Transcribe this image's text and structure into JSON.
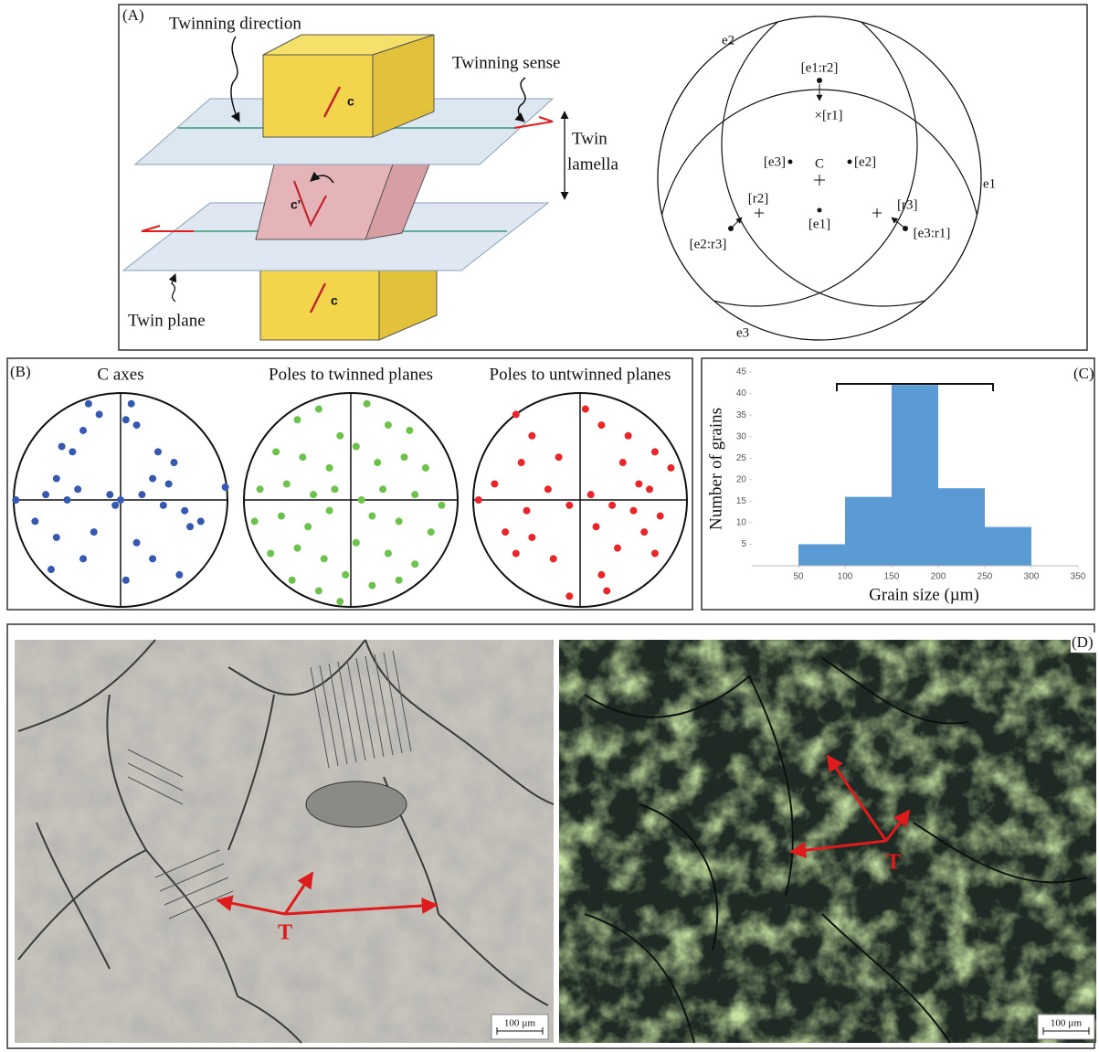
{
  "panels": {
    "a": {
      "label": "(A)",
      "twinning_direction": "Twinning direction",
      "twinning_sense": "Twinning sense",
      "twin_lamella": [
        "Twin",
        "lamella"
      ],
      "twin_plane": "Twin plane",
      "c_upper": "c",
      "c_twin": "c'",
      "c_lower": "c",
      "stereonet": {
        "e2": "e2",
        "e1": "e1",
        "e3": "e3",
        "e1_r2": "[e1:r2]",
        "r1": "×[r1]",
        "e3_pole": "[e3]",
        "c": "C",
        "e2_pole": "[e2]",
        "r2": "[r2]",
        "r3": "[r3]",
        "e2_r3": "[e2:r3]",
        "e1_pole": "[e1]",
        "e3_r1": "[e3:r1]"
      }
    },
    "b": {
      "label": "(B)",
      "nets": [
        {
          "title": "C axes",
          "color": "#3559b0",
          "x": [
            -0.3,
            -0.2,
            0.05,
            0.1,
            0.15,
            -0.55,
            -0.45,
            -0.35,
            -0.6,
            -0.4,
            0.35,
            0.5,
            0.3,
            0.45,
            -0.7,
            -0.5,
            -0.1,
            0.0,
            -0.05,
            0.2,
            0.4,
            0.6,
            0.75,
            0.65,
            -0.8,
            -0.6,
            -0.25,
            0.15,
            0.3,
            -0.65,
            0.05,
            -0.35,
            0.55,
            0.98,
            -0.98
          ],
          "y": [
            0.9,
            0.8,
            0.75,
            0.9,
            0.7,
            0.5,
            0.45,
            0.65,
            0.2,
            0.1,
            0.45,
            0.35,
            0.2,
            0.15,
            0.05,
            0.0,
            0.05,
            0.0,
            -0.05,
            0.05,
            -0.05,
            -0.1,
            -0.2,
            -0.25,
            -0.2,
            -0.35,
            -0.3,
            -0.4,
            -0.55,
            -0.65,
            -0.75,
            -0.55,
            -0.7,
            0.12,
            0.0
          ]
        },
        {
          "title": "Poles to twinned planes",
          "color": "#6cc24a",
          "x": [
            -0.5,
            -0.3,
            -0.1,
            0.15,
            0.35,
            0.55,
            -0.7,
            -0.45,
            -0.2,
            0.05,
            0.25,
            0.5,
            0.7,
            -0.85,
            -0.6,
            -0.35,
            -0.15,
            0.1,
            0.3,
            0.6,
            0.85,
            -0.9,
            -0.65,
            -0.4,
            -0.2,
            0.2,
            0.45,
            0.75,
            -0.75,
            -0.5,
            -0.25,
            0.05,
            0.35,
            0.6,
            -0.55,
            -0.3,
            -0.05,
            0.2,
            0.45,
            -0.1
          ],
          "y": [
            0.75,
            0.85,
            0.6,
            0.9,
            0.7,
            0.65,
            0.45,
            0.4,
            0.3,
            0.5,
            0.35,
            0.4,
            0.3,
            0.1,
            0.15,
            0.05,
            0.1,
            0.0,
            0.1,
            0.05,
            -0.05,
            -0.2,
            -0.15,
            -0.25,
            -0.1,
            -0.15,
            -0.2,
            -0.3,
            -0.5,
            -0.45,
            -0.55,
            -0.4,
            -0.5,
            -0.6,
            -0.75,
            -0.85,
            -0.7,
            -0.8,
            -0.75,
            -0.95
          ]
        },
        {
          "title": "Poles to untwinned planes",
          "color": "#e8262a",
          "x": [
            -0.6,
            -0.45,
            0.05,
            0.2,
            0.45,
            -0.55,
            -0.2,
            0.4,
            0.7,
            0.85,
            -0.8,
            -0.3,
            0.1,
            0.55,
            0.65,
            -0.95,
            -0.5,
            -0.1,
            0.3,
            0.5,
            0.75,
            -0.7,
            -0.45,
            0.15,
            0.6,
            -0.6,
            -0.25,
            0.35,
            0.7,
            0.2,
            0.25,
            -0.1
          ],
          "y": [
            0.8,
            0.6,
            0.85,
            0.7,
            0.6,
            0.35,
            0.4,
            0.35,
            0.45,
            0.3,
            0.15,
            0.1,
            0.05,
            0.15,
            0.1,
            0.0,
            -0.1,
            -0.05,
            -0.05,
            -0.1,
            -0.15,
            -0.3,
            -0.35,
            -0.25,
            -0.3,
            -0.5,
            -0.55,
            -0.45,
            -0.5,
            -0.7,
            -0.85,
            -0.9
          ]
        }
      ]
    },
    "c": {
      "label": "(C)"
    },
    "d": {
      "label": "(D)",
      "scale_left": "100 µm",
      "scale_right": "100 µm",
      "twin_left": "T",
      "twin_right": "T"
    }
  },
  "chart_data": {
    "type": "histogram",
    "y_label": "Number of grains",
    "x_label": "Grain size (µm)",
    "bins": [
      50,
      100,
      150,
      200,
      250,
      300
    ],
    "values": [
      5,
      16,
      42,
      18,
      9
    ],
    "color": "#5b9bd5",
    "xlim": [
      0,
      350
    ],
    "xticks": [
      50,
      100,
      150,
      200,
      250,
      300,
      350
    ],
    "ylim": [
      0,
      45
    ],
    "yticks": [
      5,
      10,
      15,
      20,
      25,
      30,
      35,
      40,
      45
    ]
  }
}
